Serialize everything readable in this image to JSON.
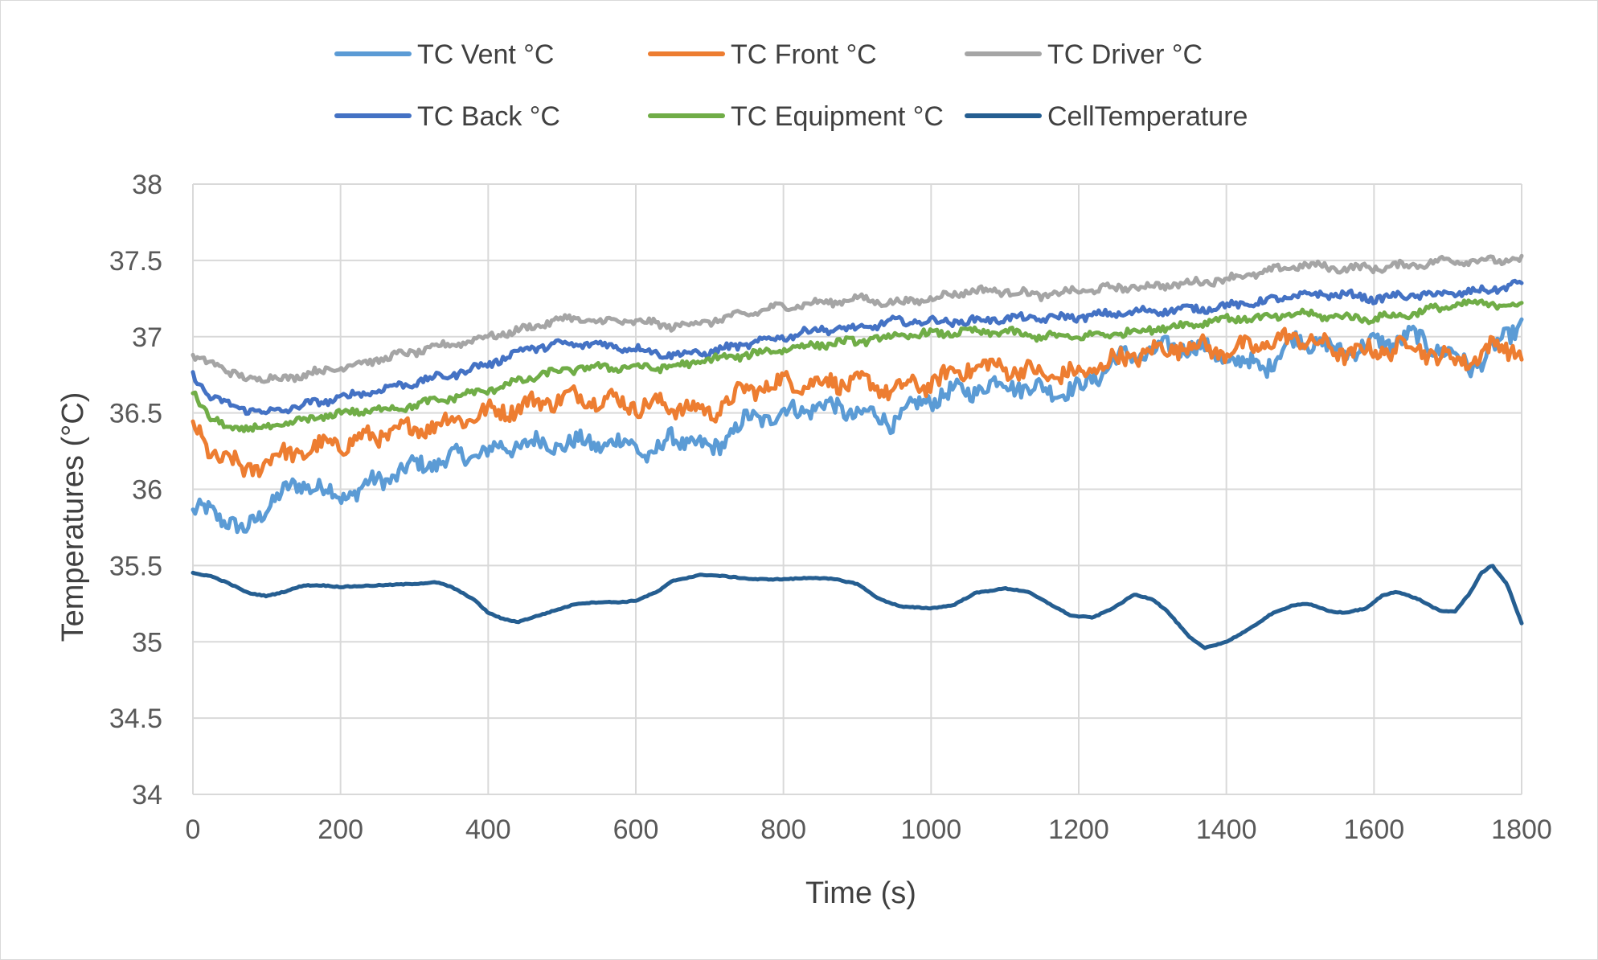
{
  "chart_data": {
    "type": "line",
    "title": "",
    "xlabel": "Time (s)",
    "ylabel": "Temperatures (°C)",
    "xlim": [
      0,
      1800
    ],
    "ylim": [
      34,
      38
    ],
    "xticks": [
      0,
      200,
      400,
      600,
      800,
      1000,
      1200,
      1400,
      1600,
      1800
    ],
    "xtick_labels": [
      "0",
      "200",
      "400",
      "600",
      "800",
      "1000",
      "1200",
      "1400",
      "1600",
      "1800"
    ],
    "yticks": [
      34,
      34.5,
      35,
      35.5,
      36,
      36.5,
      37,
      37.5,
      38
    ],
    "ytick_labels": [
      "34",
      "34.5",
      "35",
      "35.5",
      "36",
      "36.5",
      "37",
      "37.5",
      "38"
    ],
    "grid": true,
    "legend_position": "top",
    "series": [
      {
        "name": "TC Vent °C",
        "color": "#5b9bd5",
        "x": [
          0,
          25,
          50,
          70,
          100,
          150,
          200,
          250,
          300,
          350,
          400,
          450,
          500,
          550,
          600,
          620,
          650,
          700,
          750,
          800,
          850,
          900,
          950,
          1000,
          1050,
          1100,
          1150,
          1200,
          1250,
          1300,
          1350,
          1400,
          1450,
          1500,
          1550,
          1600,
          1650,
          1700,
          1730,
          1760,
          1800
        ],
        "y": [
          35.85,
          35.85,
          35.8,
          35.7,
          35.9,
          36.05,
          35.95,
          36.05,
          36.15,
          36.2,
          36.25,
          36.3,
          36.3,
          36.3,
          36.3,
          36.2,
          36.35,
          36.25,
          36.45,
          36.5,
          36.55,
          36.5,
          36.45,
          36.6,
          36.65,
          36.7,
          36.65,
          36.65,
          36.85,
          36.9,
          36.95,
          36.85,
          36.8,
          37.0,
          36.9,
          36.95,
          37.0,
          36.9,
          36.8,
          36.9,
          37.1
        ]
      },
      {
        "name": "TC Front °C",
        "color": "#ed7d31",
        "x": [
          0,
          20,
          50,
          70,
          100,
          150,
          200,
          250,
          300,
          350,
          400,
          450,
          500,
          550,
          600,
          650,
          700,
          750,
          800,
          850,
          900,
          950,
          1000,
          1050,
          1100,
          1150,
          1200,
          1250,
          1300,
          1350,
          1400,
          1450,
          1500,
          1550,
          1600,
          1650,
          1700,
          1730,
          1770,
          1800
        ],
        "y": [
          36.4,
          36.25,
          36.2,
          36.1,
          36.2,
          36.25,
          36.3,
          36.35,
          36.4,
          36.45,
          36.5,
          36.55,
          36.6,
          36.6,
          36.55,
          36.55,
          36.5,
          36.65,
          36.7,
          36.7,
          36.7,
          36.65,
          36.7,
          36.8,
          36.8,
          36.75,
          36.75,
          36.85,
          36.9,
          36.95,
          36.9,
          36.95,
          37.0,
          36.9,
          36.9,
          36.95,
          36.85,
          36.85,
          36.95,
          36.9
        ]
      },
      {
        "name": "TC Driver °C",
        "color": "#a5a5a5",
        "x": [
          0,
          25,
          50,
          100,
          150,
          200,
          250,
          300,
          350,
          400,
          450,
          500,
          550,
          600,
          650,
          700,
          750,
          800,
          850,
          900,
          950,
          1000,
          1050,
          1100,
          1150,
          1200,
          1250,
          1300,
          1350,
          1400,
          1450,
          1500,
          1550,
          1600,
          1650,
          1700,
          1750,
          1800
        ],
        "y": [
          36.85,
          36.85,
          36.75,
          36.72,
          36.75,
          36.8,
          36.85,
          36.9,
          36.95,
          37.0,
          37.05,
          37.12,
          37.1,
          37.1,
          37.07,
          37.1,
          37.15,
          37.2,
          37.22,
          37.25,
          37.22,
          37.25,
          37.3,
          37.3,
          37.27,
          37.3,
          37.32,
          37.33,
          37.35,
          37.38,
          37.42,
          37.47,
          37.45,
          37.45,
          37.47,
          37.5,
          37.5,
          37.5
        ]
      },
      {
        "name": "TC Back °C",
        "color": "#4472c4",
        "x": [
          0,
          25,
          50,
          100,
          150,
          200,
          250,
          300,
          350,
          400,
          450,
          500,
          550,
          600,
          650,
          700,
          750,
          800,
          850,
          900,
          950,
          1000,
          1050,
          1100,
          1150,
          1200,
          1250,
          1300,
          1350,
          1400,
          1450,
          1500,
          1550,
          1600,
          1650,
          1700,
          1750,
          1800
        ],
        "y": [
          36.75,
          36.6,
          36.55,
          36.5,
          36.55,
          36.6,
          36.65,
          36.7,
          36.75,
          36.82,
          36.92,
          36.95,
          36.95,
          36.92,
          36.88,
          36.9,
          36.95,
          37.0,
          37.05,
          37.05,
          37.1,
          37.1,
          37.1,
          37.12,
          37.12,
          37.13,
          37.15,
          37.17,
          37.18,
          37.2,
          37.23,
          37.27,
          37.28,
          37.25,
          37.27,
          37.28,
          37.3,
          37.35
        ]
      },
      {
        "name": "TC Equipment °C",
        "color": "#70ad47",
        "x": [
          0,
          25,
          50,
          100,
          150,
          200,
          250,
          300,
          350,
          400,
          450,
          500,
          550,
          600,
          650,
          700,
          750,
          800,
          850,
          900,
          950,
          1000,
          1050,
          1100,
          1150,
          1200,
          1250,
          1300,
          1350,
          1400,
          1450,
          1500,
          1550,
          1600,
          1650,
          1700,
          1750,
          1800
        ],
        "y": [
          36.65,
          36.45,
          36.4,
          36.4,
          36.45,
          36.5,
          36.52,
          36.55,
          36.6,
          36.65,
          36.72,
          36.78,
          36.8,
          36.8,
          36.8,
          36.85,
          36.88,
          36.92,
          36.95,
          36.97,
          37.0,
          37.02,
          37.03,
          37.03,
          37.0,
          37.0,
          37.02,
          37.05,
          37.08,
          37.12,
          37.12,
          37.15,
          37.13,
          37.12,
          37.15,
          37.2,
          37.22,
          37.2
        ]
      },
      {
        "name": "CellTemperature",
        "color": "#255e91",
        "x": [
          0,
          25,
          50,
          75,
          100,
          125,
          150,
          175,
          200,
          250,
          300,
          330,
          350,
          380,
          400,
          420,
          440,
          460,
          480,
          500,
          520,
          550,
          580,
          600,
          630,
          650,
          690,
          720,
          760,
          800,
          840,
          870,
          900,
          930,
          960,
          1000,
          1030,
          1060,
          1100,
          1130,
          1160,
          1190,
          1220,
          1250,
          1275,
          1300,
          1320,
          1350,
          1370,
          1400,
          1430,
          1460,
          1490,
          1510,
          1540,
          1560,
          1590,
          1610,
          1630,
          1660,
          1690,
          1710,
          1730,
          1745,
          1760,
          1780,
          1800
        ],
        "y": [
          35.45,
          35.43,
          35.38,
          35.32,
          35.3,
          35.33,
          35.37,
          35.37,
          35.36,
          35.37,
          35.38,
          35.39,
          35.36,
          35.28,
          35.19,
          35.15,
          35.13,
          35.16,
          35.19,
          35.22,
          35.25,
          35.26,
          35.26,
          35.27,
          35.33,
          35.4,
          35.44,
          35.43,
          35.41,
          35.41,
          35.42,
          35.41,
          35.38,
          35.28,
          35.23,
          35.22,
          35.24,
          35.32,
          35.35,
          35.33,
          35.25,
          35.17,
          35.16,
          35.23,
          35.31,
          35.28,
          35.2,
          35.03,
          34.96,
          35.0,
          35.08,
          35.18,
          35.24,
          35.25,
          35.2,
          35.19,
          35.22,
          35.3,
          35.33,
          35.28,
          35.2,
          35.2,
          35.32,
          35.45,
          35.5,
          35.38,
          35.12
        ]
      }
    ]
  }
}
